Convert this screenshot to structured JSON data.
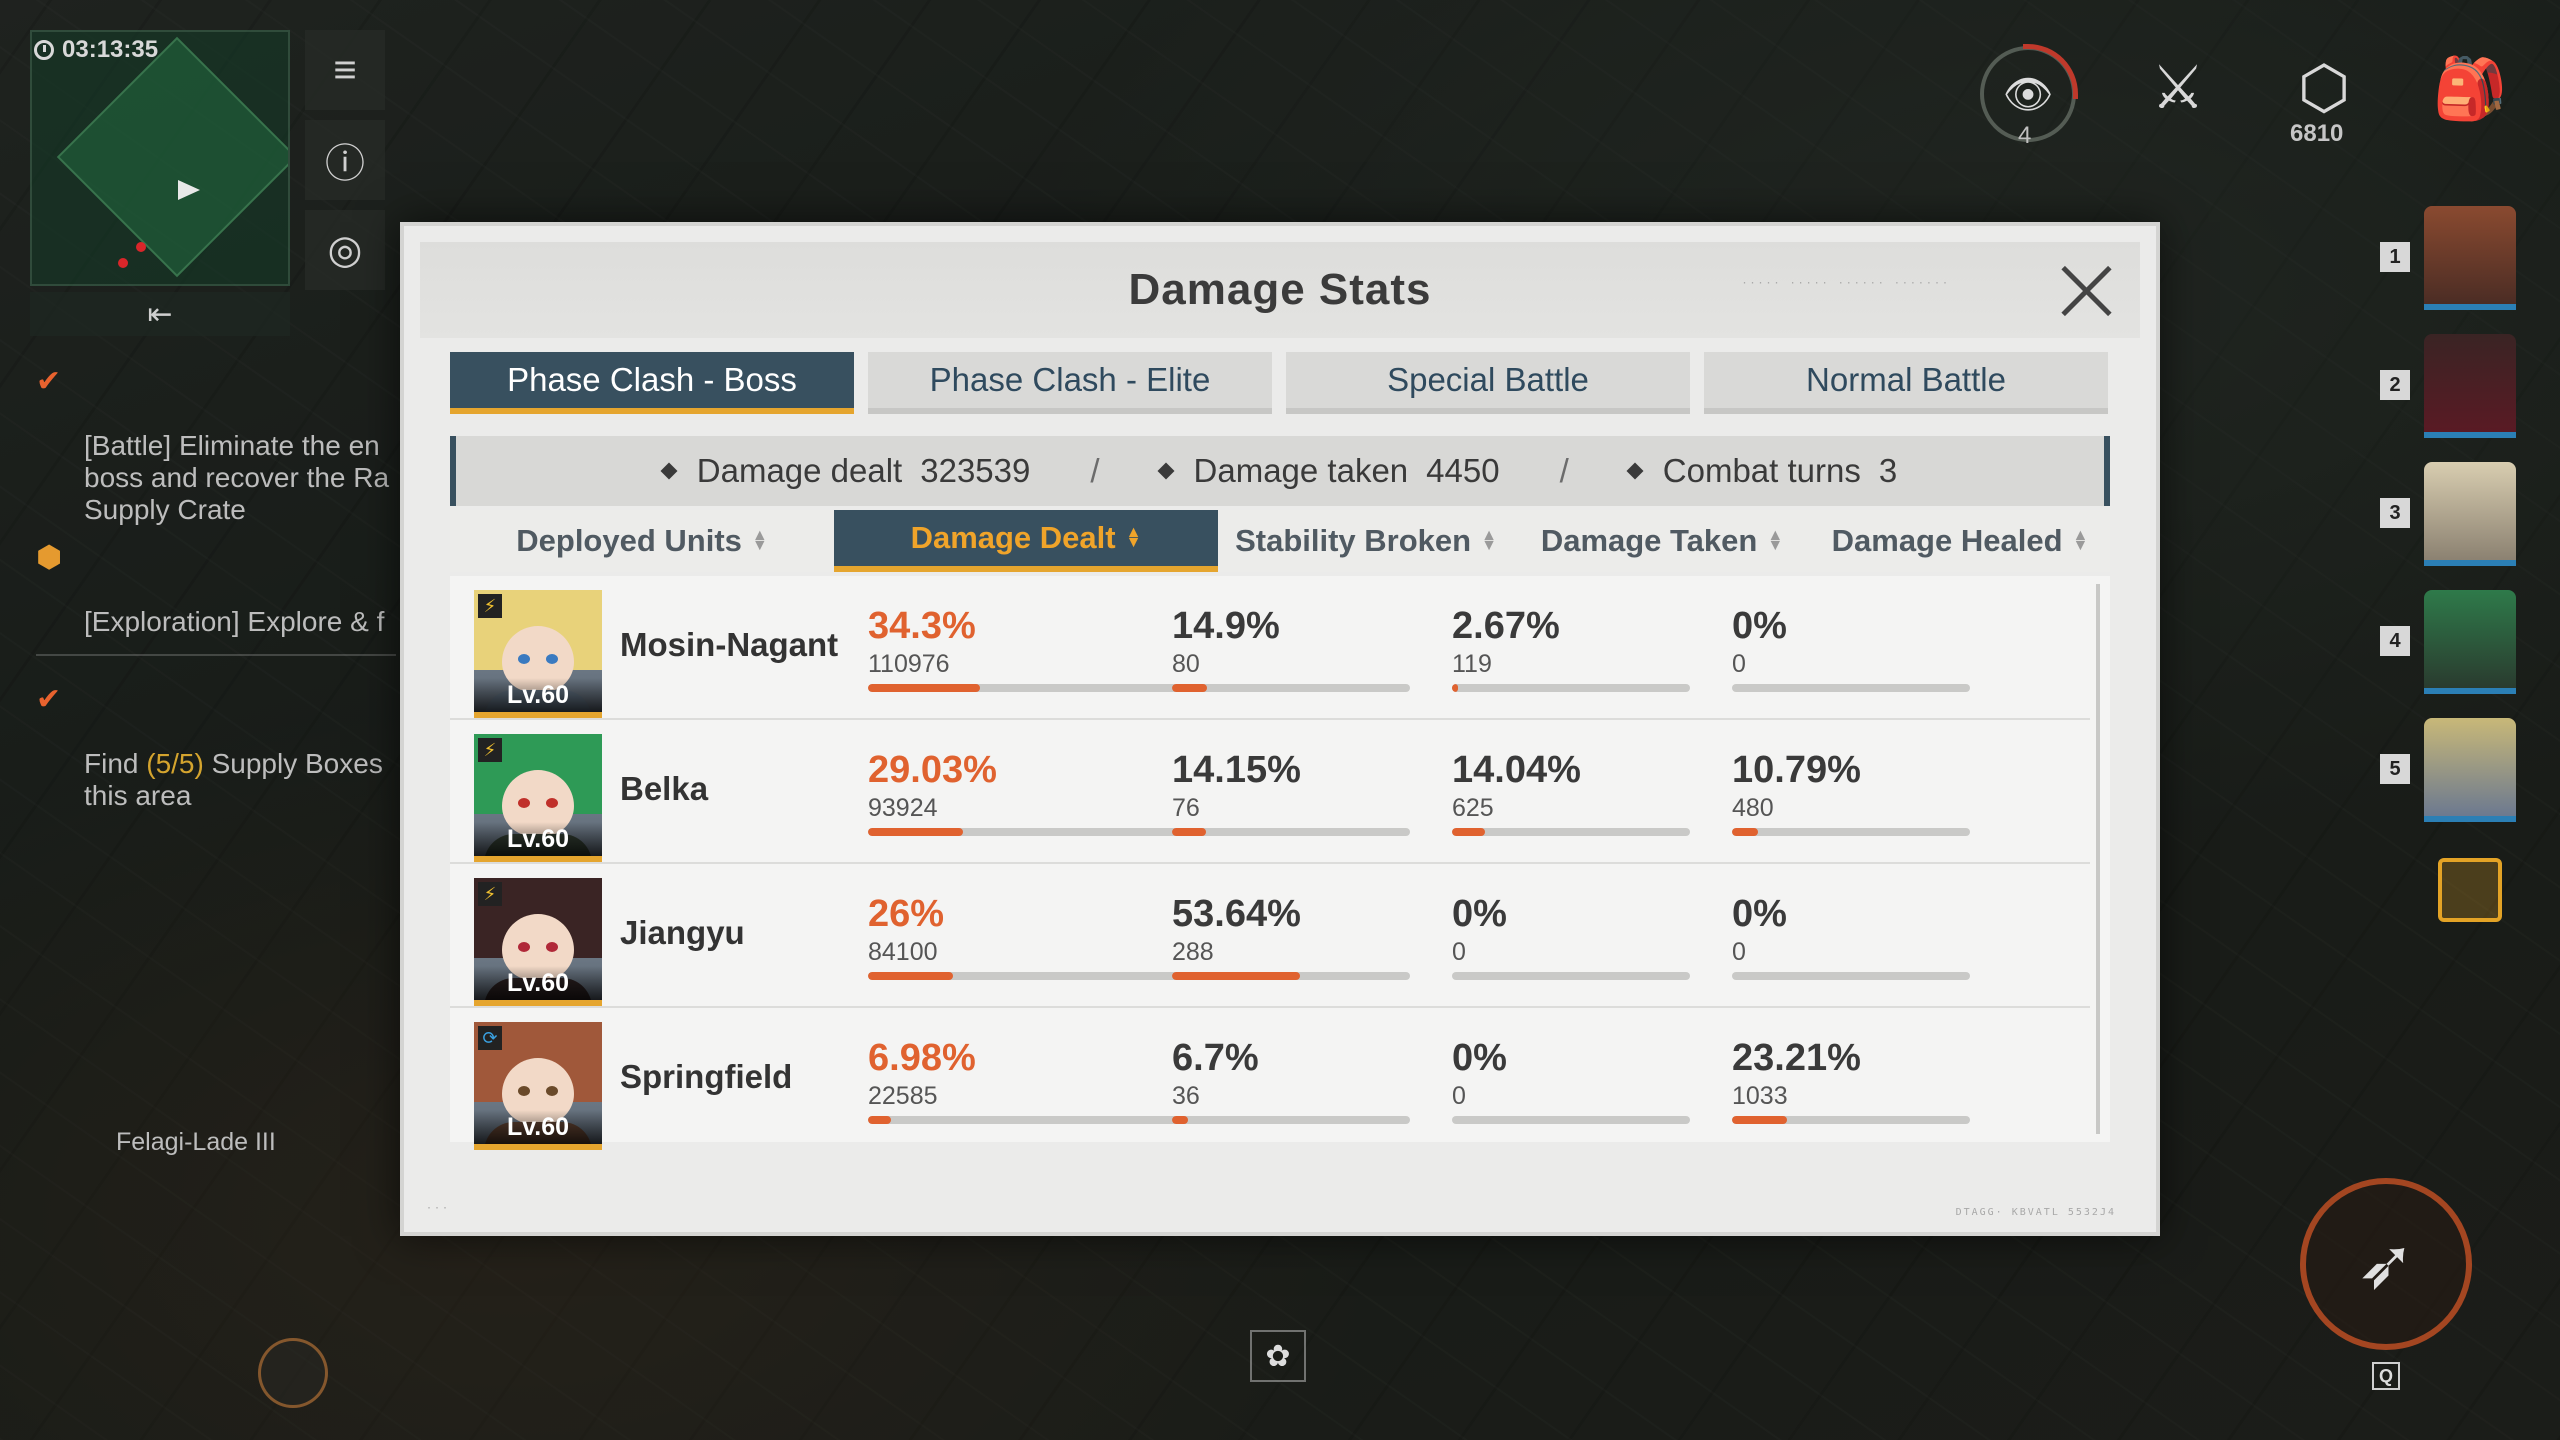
{
  "hud": {
    "timer": "03:13:35",
    "quests": [
      {
        "text": "[Battle] Eliminate the en\nboss and recover the Ra\nSupply Crate",
        "status": "done"
      },
      {
        "text": "[Exploration] Explore & f",
        "status": "active"
      },
      {
        "prefix": "Find ",
        "highlight": "(5/5)",
        "suffix": " Supply Boxes\nthis area",
        "status": "done"
      }
    ],
    "location": "Felagi-Lade III",
    "eye_count": "4",
    "resource_count": "6810",
    "squad_numbers": [
      "1",
      "2",
      "3",
      "4",
      "5"
    ],
    "skill_key": "Q"
  },
  "modal": {
    "title": "Damage Stats",
    "deco_top": "·····  ·····  ······  ·······",
    "deco_bottom": "DTAGG· KBVATL 5532J4",
    "tabs": [
      {
        "label": "Phase Clash - Boss",
        "active": true
      },
      {
        "label": "Phase Clash - Elite",
        "active": false
      },
      {
        "label": "Special Battle",
        "active": false
      },
      {
        "label": "Normal Battle",
        "active": false
      }
    ],
    "summary": {
      "damage_dealt_label": "Damage dealt",
      "damage_dealt_value": "323539",
      "damage_taken_label": "Damage taken",
      "damage_taken_value": "4450",
      "combat_turns_label": "Combat turns",
      "combat_turns_value": "3",
      "separator": "/"
    },
    "columns": [
      {
        "label": "Deployed Units",
        "active": false
      },
      {
        "label": "Damage Dealt",
        "active": true
      },
      {
        "label": "Stability Broken",
        "active": false
      },
      {
        "label": "Damage Taken",
        "active": false
      },
      {
        "label": "Damage Healed",
        "active": false
      }
    ],
    "units": [
      {
        "name": "Mosin-Nagant",
        "level": "Lv.60",
        "badge": "lightning",
        "hair": "#e8d27a",
        "body": "#5a6a7a",
        "eye": "#3a7ac0",
        "dealt": {
          "pct": "34.3%",
          "value": "110976",
          "frac": 0.343
        },
        "broken": {
          "pct": "14.9%",
          "value": "80",
          "frac": 0.149
        },
        "taken": {
          "pct": "2.67%",
          "value": "119",
          "frac": 0.0267
        },
        "healed": {
          "pct": "0%",
          "value": "0",
          "frac": 0
        }
      },
      {
        "name": "Belka",
        "level": "Lv.60",
        "badge": "lightning",
        "hair": "#2e9a56",
        "body": "#2f3a2f",
        "eye": "#c0302a",
        "dealt": {
          "pct": "29.03%",
          "value": "93924",
          "frac": 0.2903
        },
        "broken": {
          "pct": "14.15%",
          "value": "76",
          "frac": 0.1415
        },
        "taken": {
          "pct": "14.04%",
          "value": "625",
          "frac": 0.1404
        },
        "healed": {
          "pct": "10.79%",
          "value": "480",
          "frac": 0.1079
        }
      },
      {
        "name": "Jiangyu",
        "level": "Lv.60",
        "badge": "lightning",
        "hair": "#3a2424",
        "body": "#2a2020",
        "eye": "#b02838",
        "dealt": {
          "pct": "26%",
          "value": "84100",
          "frac": 0.26
        },
        "broken": {
          "pct": "53.64%",
          "value": "288",
          "frac": 0.5364
        },
        "taken": {
          "pct": "0%",
          "value": "0",
          "frac": 0
        },
        "healed": {
          "pct": "0%",
          "value": "0",
          "frac": 0
        }
      },
      {
        "name": "Springfield",
        "level": "Lv.60",
        "badge": "cycle",
        "hair": "#a0583a",
        "body": "#5a3e2e",
        "eye": "#6a4a2a",
        "dealt": {
          "pct": "6.98%",
          "value": "22585",
          "frac": 0.0698
        },
        "broken": {
          "pct": "6.7%",
          "value": "36",
          "frac": 0.067
        },
        "taken": {
          "pct": "0%",
          "value": "0",
          "frac": 0
        },
        "healed": {
          "pct": "23.21%",
          "value": "1033",
          "frac": 0.2321
        }
      }
    ]
  },
  "colors": {
    "accent_orange": "#e0622f",
    "tab_active_bg": "#38505f",
    "tab_active_underline": "#e5a52e"
  }
}
